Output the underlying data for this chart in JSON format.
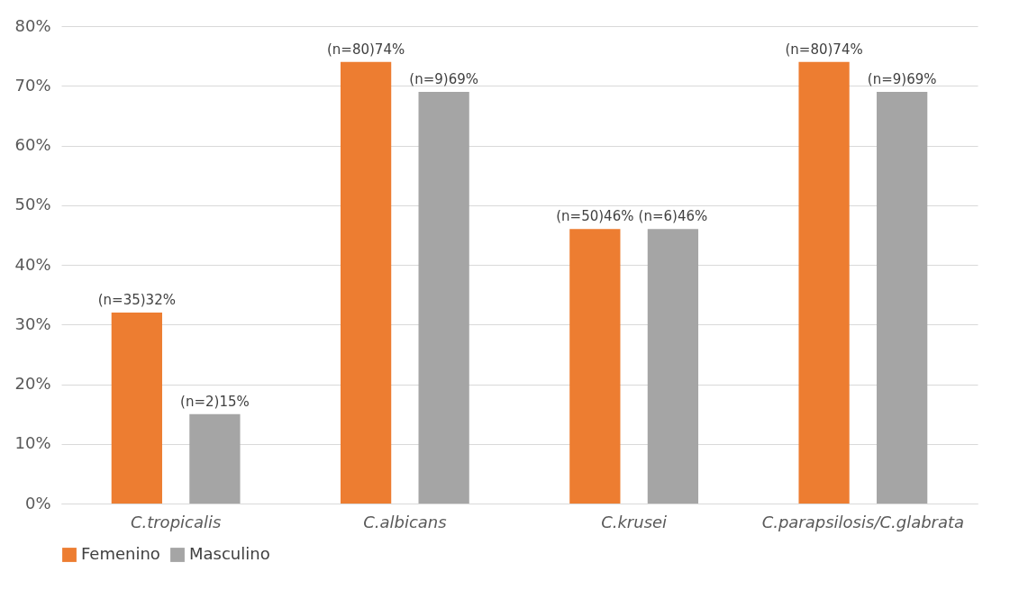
{
  "chart_data": {
    "type": "bar",
    "categories": [
      "C.tropicalis",
      "C.albicans",
      "C.krusei",
      "C.parapsilosis/C.glabrata"
    ],
    "series": [
      {
        "name": "Femenino",
        "color": "#ed7d31",
        "values": [
          32,
          74,
          46,
          74
        ],
        "value_labels": [
          "(n=35)32%",
          "(n=80)74%",
          "(n=50)46%",
          "(n=80)74%"
        ]
      },
      {
        "name": "Masculino",
        "color": "#a5a5a5",
        "values": [
          15,
          69,
          46,
          69
        ],
        "value_labels": [
          "(n=2)15%",
          "(n=9)69%",
          "(n=6)46%",
          "(n=9)69%"
        ]
      }
    ],
    "ylim": [
      0,
      80
    ],
    "yticks": [
      {
        "value": 0,
        "label": "0%"
      },
      {
        "value": 10,
        "label": "10%"
      },
      {
        "value": 20,
        "label": "20%"
      },
      {
        "value": 30,
        "label": "30%"
      },
      {
        "value": 40,
        "label": "40%"
      },
      {
        "value": 50,
        "label": "50%"
      },
      {
        "value": 60,
        "label": "60%"
      },
      {
        "value": 70,
        "label": "70%"
      },
      {
        "value": 80,
        "label": "80%"
      }
    ],
    "grid": "y",
    "legend": "bottom"
  }
}
